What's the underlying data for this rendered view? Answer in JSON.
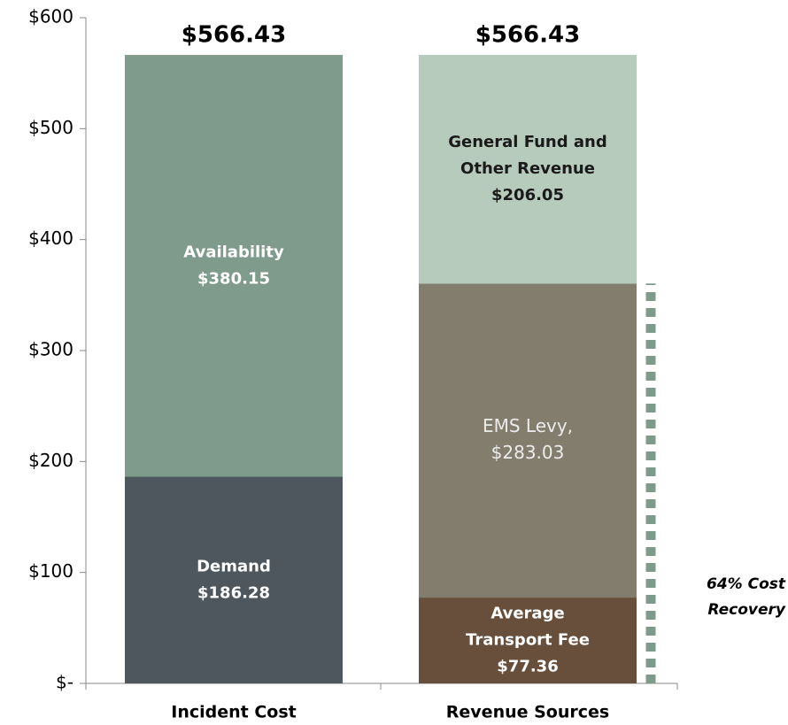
{
  "chart_data": {
    "type": "stacked_bar",
    "categories": [
      "Incident Cost",
      "Revenue Sources"
    ],
    "series": [
      {
        "name": [
          "Demand"
        ],
        "color": "#4d575d",
        "label_color": "#ffffff",
        "values": [
          186.28,
          null
        ],
        "value_labels": [
          "$186.28",
          null
        ]
      },
      {
        "name": [
          "Availability"
        ],
        "color": "#7f9b8c",
        "label_color": "#ffffff",
        "values": [
          380.15,
          null
        ],
        "value_labels": [
          "$380.15",
          null
        ]
      },
      {
        "name": [
          "Average",
          "Transport Fee"
        ],
        "color": "#674f3c",
        "label_color": "#ffffff",
        "values": [
          null,
          77.36
        ],
        "value_labels": [
          null,
          "$77.36"
        ]
      },
      {
        "name": [
          "EMS Levy,"
        ],
        "color": "#827d6d",
        "label_color": "#ececec",
        "label_weight": "normal",
        "values": [
          null,
          283.03
        ],
        "value_labels": [
          null,
          "$283.03"
        ]
      },
      {
        "name": [
          "General Fund and",
          "Other Revenue"
        ],
        "color": "#b7cbbd",
        "label_color": "#1a1a1a",
        "values": [
          null,
          206.05
        ],
        "value_labels": [
          null,
          "$206.05"
        ]
      }
    ],
    "totals": [
      566.43,
      566.43
    ],
    "total_labels": [
      "$566.43",
      "$566.43"
    ],
    "ylim": [
      0,
      600
    ],
    "yticks": [
      {
        "value": 0,
        "label": "$-"
      },
      {
        "value": 100,
        "label": "$100"
      },
      {
        "value": 200,
        "label": "$200"
      },
      {
        "value": 300,
        "label": "$300"
      },
      {
        "value": 400,
        "label": "$400"
      },
      {
        "value": 500,
        "label": "$500"
      },
      {
        "value": 600,
        "label": "$600"
      }
    ],
    "annotation": {
      "lines": [
        "64% Cost",
        "Recovery"
      ],
      "series": [
        2,
        3
      ],
      "color": "#7f9b8c"
    }
  }
}
